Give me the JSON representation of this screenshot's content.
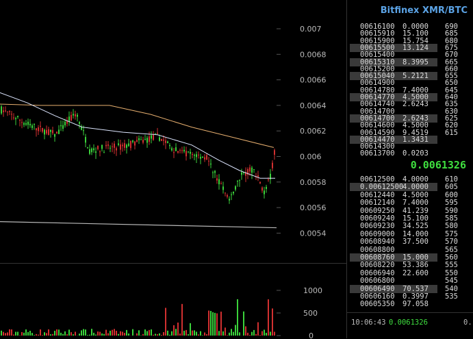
{
  "app": {
    "title": "Bitfinex XMR/BTC"
  },
  "last_price": "0.0061326",
  "trade": {
    "time": "10:06:43",
    "price": "0.0061326",
    "next": "0."
  },
  "price_axis": [
    "0.007",
    "0.0068",
    "0.0066",
    "0.0064",
    "0.0062",
    "0.006",
    "0.0058",
    "0.0056",
    "0.0054"
  ],
  "volume_axis": [
    "1000",
    "500",
    "0"
  ],
  "levels_upper": [
    "690",
    "685",
    "680",
    "675",
    "670",
    "665",
    "660",
    "655",
    "650",
    "645",
    "640",
    "635",
    "630",
    "625",
    "620",
    "615"
  ],
  "levels_lower": [
    "610",
    "605",
    "600",
    "595",
    "590",
    "585",
    "580",
    "575",
    "570",
    "565",
    "560",
    "555",
    "550",
    "545",
    "540",
    "535"
  ],
  "asks": [
    {
      "price": "00616100",
      "qty": "0.0000",
      "hl": false
    },
    {
      "price": "00615910",
      "qty": "15.100",
      "hl": false
    },
    {
      "price": "00615900",
      "qty": "15.754",
      "hl": false
    },
    {
      "price": "00615500",
      "qty": "13.124",
      "hl": true
    },
    {
      "price": "00615400",
      "qty": "",
      "hl": false
    },
    {
      "price": "00615310",
      "qty": "8.3995",
      "hl": true
    },
    {
      "price": "00615200",
      "qty": "",
      "hl": false
    },
    {
      "price": "00615040",
      "qty": "5.2121",
      "hl": true
    },
    {
      "price": "00614900",
      "qty": "",
      "hl": false
    },
    {
      "price": "00614780",
      "qty": "7.4000",
      "hl": false
    },
    {
      "price": "00614770",
      "qty": "4.5000",
      "hl": true
    },
    {
      "price": "00614740",
      "qty": "2.6243",
      "hl": false
    },
    {
      "price": "00614700",
      "qty": "",
      "hl": false
    },
    {
      "price": "00614700",
      "qty": "2.6243",
      "hl": true
    },
    {
      "price": "00614600",
      "qty": "4.5000",
      "hl": false
    },
    {
      "price": "00614590",
      "qty": "9.4519",
      "hl": false
    },
    {
      "price": "00614470",
      "qty": "1.3431",
      "hl": true
    },
    {
      "price": "00614300",
      "qty": "",
      "hl": false
    },
    {
      "price": "00613700",
      "qty": "0.0203",
      "hl": false
    }
  ],
  "bids": [
    {
      "price": "00612500",
      "qty": "4.0000",
      "hl": false
    },
    {
      "price": "0.00612500",
      "qty": "4.0000",
      "hl": true
    },
    {
      "price": "00612440",
      "qty": "4.5000",
      "hl": false
    },
    {
      "price": "00612140",
      "qty": "7.4000",
      "hl": false
    },
    {
      "price": "00609250",
      "qty": "41.239",
      "hl": false
    },
    {
      "price": "00609240",
      "qty": "15.100",
      "hl": false
    },
    {
      "price": "00609230",
      "qty": "34.525",
      "hl": false
    },
    {
      "price": "00609000",
      "qty": "14.000",
      "hl": false
    },
    {
      "price": "00608940",
      "qty": "37.500",
      "hl": false
    },
    {
      "price": "00608800",
      "qty": "",
      "hl": false
    },
    {
      "price": "00608760",
      "qty": "15.000",
      "hl": true
    },
    {
      "price": "00608220",
      "qty": "53.386",
      "hl": false
    },
    {
      "price": "00606940",
      "qty": "22.600",
      "hl": false
    },
    {
      "price": "00606800",
      "qty": "",
      "hl": false
    },
    {
      "price": "00606490",
      "qty": "70.537",
      "hl": true
    },
    {
      "price": "00606160",
      "qty": "0.3997",
      "hl": false
    },
    {
      "price": "00605350",
      "qty": "97.058",
      "hl": false
    }
  ],
  "colors": {
    "up": "#3bd23b",
    "down": "#d23030",
    "ma_slow": "#e8b070",
    "ma_fast": "#dde6ff",
    "trend": "#bbbbbb",
    "accent": "#5ba3e6"
  }
}
